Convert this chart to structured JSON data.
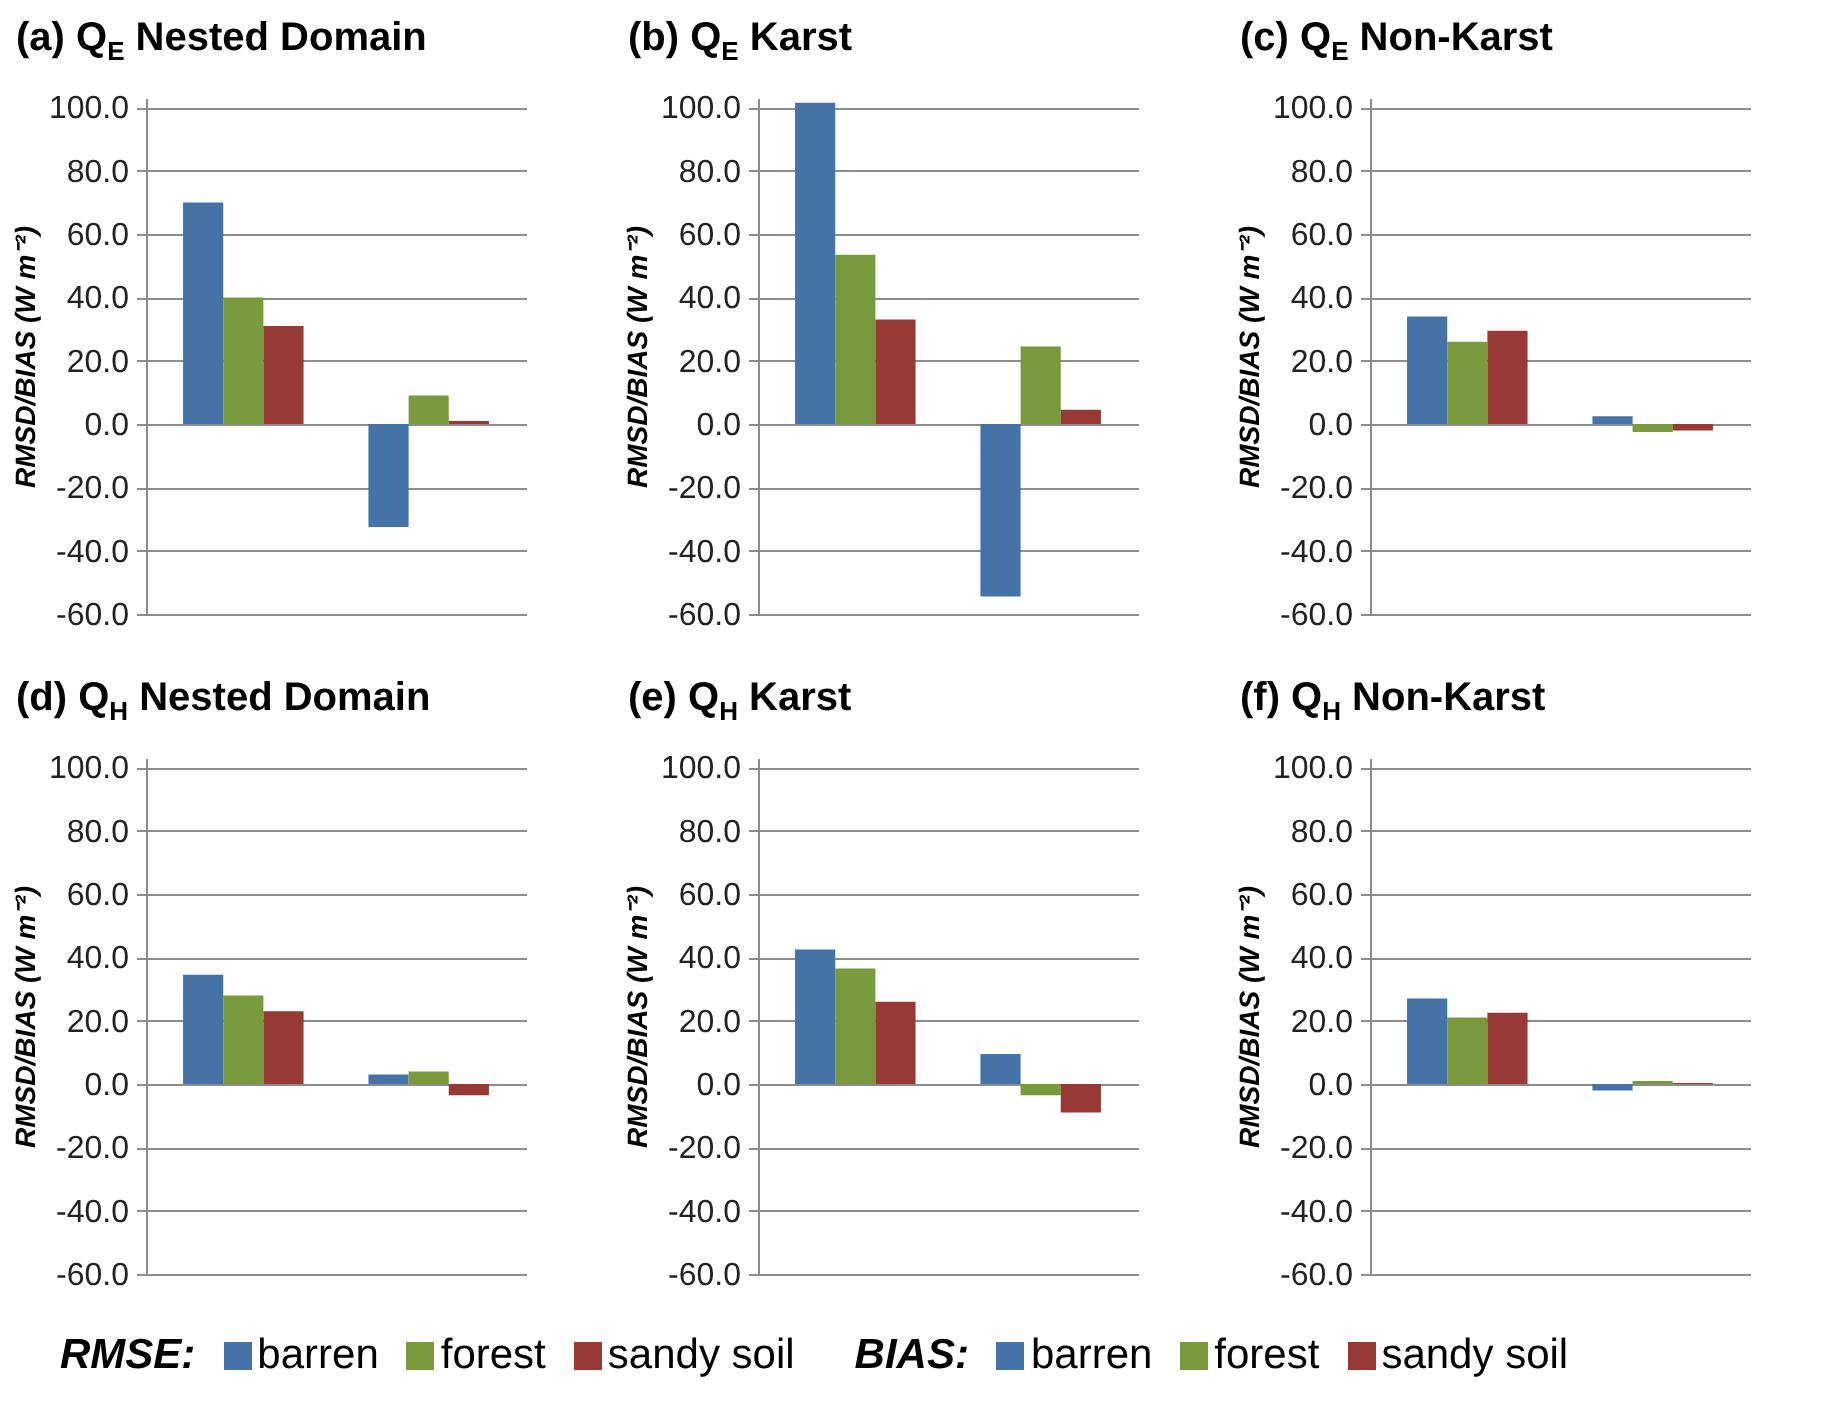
{
  "chart_data": [
    {
      "type": "bar",
      "title": "(a)  Q$_{E}$  Nested Domain",
      "ylabel": "RMSD/BIAS (W m⁻²)",
      "categories": [
        null,
        null
      ],
      "ylim": [
        -60,
        103
      ],
      "yticks": [
        {
          "value": -60,
          "label": "-60.0"
        },
        {
          "value": -40,
          "label": "-40.0"
        },
        {
          "value": -20,
          "label": "-20.0"
        },
        {
          "value": 0,
          "label": "0.0"
        },
        {
          "value": 20,
          "label": "20.0"
        },
        {
          "value": 40,
          "label": "40.0"
        },
        {
          "value": 60,
          "label": "60.0"
        },
        {
          "value": 80,
          "label": "80.0"
        },
        {
          "value": 100,
          "label": "100.0"
        }
      ],
      "grid": "y",
      "tick_labels": "y",
      "series": [
        {
          "color": "#4572a7",
          "values": [
            70,
            null
          ]
        },
        {
          "color": "#789a3c",
          "values": [
            40,
            null
          ]
        },
        {
          "color": "#973a36",
          "values": [
            31,
            null
          ]
        },
        {
          "color": "#4572a7",
          "values": [
            null,
            -32.5
          ]
        },
        {
          "color": "#789a3c",
          "values": [
            null,
            9
          ]
        },
        {
          "color": "#973a36",
          "values": [
            null,
            1
          ]
        }
      ]
    },
    {
      "type": "bar",
      "title": "(b)  Q$_{E}$  Karst",
      "ylabel": "RMSD/BIAS (W m⁻²)",
      "categories": [
        null,
        null
      ],
      "ylim": [
        -60,
        103
      ],
      "yticks": [
        {
          "value": -60,
          "label": "-60.0"
        },
        {
          "value": -40,
          "label": "-40.0"
        },
        {
          "value": -20,
          "label": "-20.0"
        },
        {
          "value": 0,
          "label": "0.0"
        },
        {
          "value": 20,
          "label": "20.0"
        },
        {
          "value": 40,
          "label": "40.0"
        },
        {
          "value": 60,
          "label": "60.0"
        },
        {
          "value": 80,
          "label": "80.0"
        },
        {
          "value": 100,
          "label": "100.0"
        }
      ],
      "grid": "y",
      "tick_labels": "y",
      "series": [
        {
          "color": "#4572a7",
          "values": [
            101.5,
            null
          ]
        },
        {
          "color": "#789a3c",
          "values": [
            53.5,
            null
          ]
        },
        {
          "color": "#973a36",
          "values": [
            33,
            null
          ]
        },
        {
          "color": "#4572a7",
          "values": [
            null,
            -54.5
          ]
        },
        {
          "color": "#789a3c",
          "values": [
            null,
            24.5
          ]
        },
        {
          "color": "#973a36",
          "values": [
            null,
            4.5
          ]
        }
      ]
    },
    {
      "type": "bar",
      "title": "(c)  Q$_{E}$  Non-Karst",
      "ylabel": "RMSD/BIAS (W m⁻²)",
      "categories": [
        null,
        null
      ],
      "ylim": [
        -60,
        103
      ],
      "yticks": [
        {
          "value": -60,
          "label": "-60.0"
        },
        {
          "value": -40,
          "label": "-40.0"
        },
        {
          "value": -20,
          "label": "-20.0"
        },
        {
          "value": 0,
          "label": "0.0"
        },
        {
          "value": 20,
          "label": "20.0"
        },
        {
          "value": 40,
          "label": "40.0"
        },
        {
          "value": 60,
          "label": "60.0"
        },
        {
          "value": 80,
          "label": "80.0"
        },
        {
          "value": 100,
          "label": "100.0"
        }
      ],
      "grid": "y",
      "tick_labels": "y",
      "series": [
        {
          "color": "#4572a7",
          "values": [
            34,
            null
          ]
        },
        {
          "color": "#789a3c",
          "values": [
            26,
            null
          ]
        },
        {
          "color": "#973a36",
          "values": [
            29.5,
            null
          ]
        },
        {
          "color": "#4572a7",
          "values": [
            null,
            2.5
          ]
        },
        {
          "color": "#789a3c",
          "values": [
            null,
            -2.5
          ]
        },
        {
          "color": "#973a36",
          "values": [
            null,
            -2
          ]
        }
      ]
    },
    {
      "type": "bar",
      "title": "(d)  Q$_{H}$  Nested Domain",
      "ylabel": "RMSD/BIAS (W m⁻²)",
      "categories": [
        null,
        null
      ],
      "ylim": [
        -60,
        103
      ],
      "yticks": [
        {
          "value": -60,
          "label": "-60.0"
        },
        {
          "value": -40,
          "label": "-40.0"
        },
        {
          "value": -20,
          "label": "-20.0"
        },
        {
          "value": 0,
          "label": "0.0"
        },
        {
          "value": 20,
          "label": "20.0"
        },
        {
          "value": 40,
          "label": "40.0"
        },
        {
          "value": 60,
          "label": "60.0"
        },
        {
          "value": 80,
          "label": "80.0"
        },
        {
          "value": 100,
          "label": "100.0"
        }
      ],
      "grid": "y",
      "tick_labels": "y",
      "series": [
        {
          "color": "#4572a7",
          "values": [
            34.5,
            null
          ]
        },
        {
          "color": "#789a3c",
          "values": [
            28,
            null
          ]
        },
        {
          "color": "#973a36",
          "values": [
            23,
            null
          ]
        },
        {
          "color": "#4572a7",
          "values": [
            null,
            3
          ]
        },
        {
          "color": "#789a3c",
          "values": [
            null,
            4
          ]
        },
        {
          "color": "#973a36",
          "values": [
            null,
            -3.5
          ]
        }
      ]
    },
    {
      "type": "bar",
      "title": "(e)  Q$_{H}$  Karst",
      "ylabel": "RMSD/BIAS (W m⁻²)",
      "categories": [
        null,
        null
      ],
      "ylim": [
        -60,
        103
      ],
      "yticks": [
        {
          "value": -60,
          "label": "-60.0"
        },
        {
          "value": -40,
          "label": "-40.0"
        },
        {
          "value": -20,
          "label": "-20.0"
        },
        {
          "value": 0,
          "label": "0.0"
        },
        {
          "value": 20,
          "label": "20.0"
        },
        {
          "value": 40,
          "label": "40.0"
        },
        {
          "value": 60,
          "label": "60.0"
        },
        {
          "value": 80,
          "label": "80.0"
        },
        {
          "value": 100,
          "label": "100.0"
        }
      ],
      "grid": "y",
      "tick_labels": "y",
      "series": [
        {
          "color": "#4572a7",
          "values": [
            42.5,
            null
          ]
        },
        {
          "color": "#789a3c",
          "values": [
            36.5,
            null
          ]
        },
        {
          "color": "#973a36",
          "values": [
            26,
            null
          ]
        },
        {
          "color": "#4572a7",
          "values": [
            null,
            9.5
          ]
        },
        {
          "color": "#789a3c",
          "values": [
            null,
            -3.5
          ]
        },
        {
          "color": "#973a36",
          "values": [
            null,
            -9
          ]
        }
      ]
    },
    {
      "type": "bar",
      "title": "(f)  Q$_{H}$  Non-Karst",
      "ylabel": "RMSD/BIAS (W m⁻²)",
      "categories": [
        null,
        null
      ],
      "ylim": [
        -60,
        103
      ],
      "yticks": [
        {
          "value": -60,
          "label": "-60.0"
        },
        {
          "value": -40,
          "label": "-40.0"
        },
        {
          "value": -20,
          "label": "-20.0"
        },
        {
          "value": 0,
          "label": "0.0"
        },
        {
          "value": 20,
          "label": "20.0"
        },
        {
          "value": 40,
          "label": "40.0"
        },
        {
          "value": 60,
          "label": "60.0"
        },
        {
          "value": 80,
          "label": "80.0"
        },
        {
          "value": 100,
          "label": "100.0"
        }
      ],
      "grid": "y",
      "tick_labels": "y",
      "legend": "bottom",
      "annotations": [
        "RMSE:",
        "BIAS:"
      ],
      "series": [
        {
          "name": "barren",
          "color": "#4572a7",
          "values": [
            27,
            null
          ]
        },
        {
          "name": "forest",
          "color": "#789a3c",
          "values": [
            21,
            null
          ]
        },
        {
          "name": "sandy soil",
          "color": "#973a36",
          "values": [
            22.5,
            null
          ]
        },
        {
          "name": "barren",
          "color": "#4572a7",
          "values": [
            null,
            -2
          ]
        },
        {
          "name": "forest",
          "color": "#789a3c",
          "values": [
            null,
            1
          ]
        },
        {
          "name": "sandy soil",
          "color": "#973a36",
          "values": [
            null,
            0.3
          ]
        }
      ]
    }
  ]
}
